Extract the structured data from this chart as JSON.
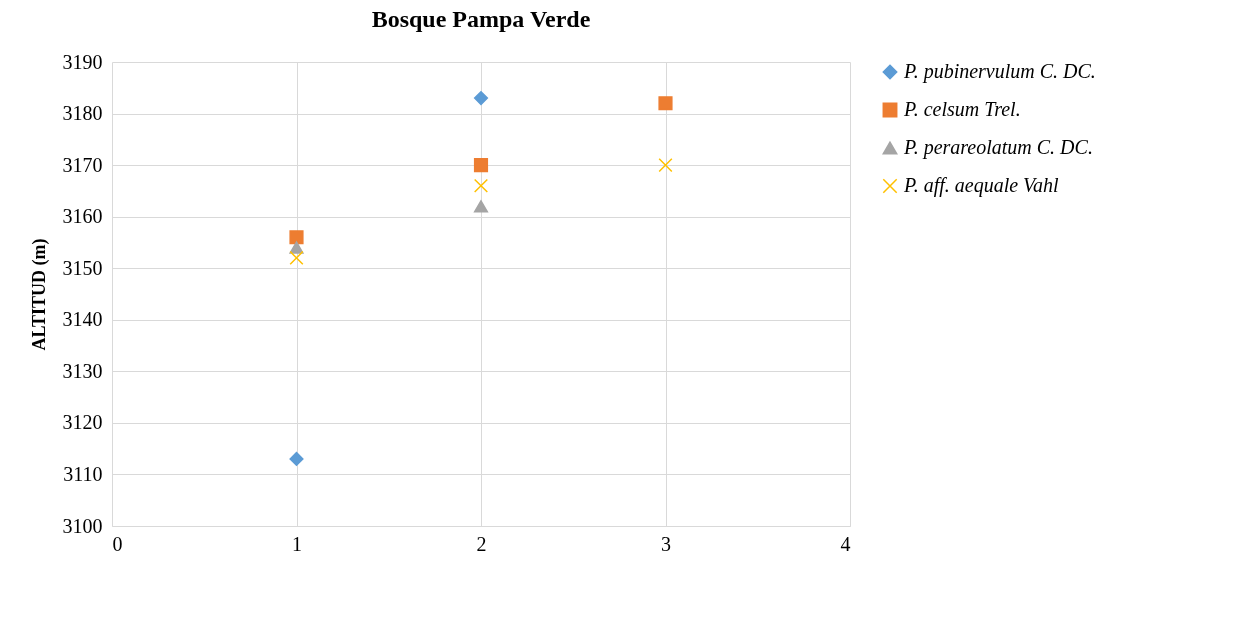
{
  "chart_data": {
    "type": "scatter",
    "title": "Bosque Pampa Verde",
    "ylabel": "ALTITUD (m)",
    "xlim": [
      0,
      4
    ],
    "xticks": [
      0,
      1,
      2,
      3,
      4
    ],
    "ylim": [
      3100,
      3190
    ],
    "yticks": [
      3100,
      3110,
      3120,
      3130,
      3140,
      3150,
      3160,
      3170,
      3180,
      3190
    ],
    "grid": true,
    "legend": "right",
    "series": [
      {
        "name": "P. pubinervulum C. DC.",
        "color": "#5b9bd5",
        "marker": "diamond",
        "x": [
          1,
          2
        ],
        "values": [
          3113,
          3183
        ]
      },
      {
        "name": "P. celsum Trel.",
        "color": "#ed7d31",
        "marker": "square",
        "x": [
          1,
          2,
          3
        ],
        "values": [
          3156,
          3170,
          3182
        ]
      },
      {
        "name": "P. perareolatum C. DC.",
        "color": "#a5a5a5",
        "marker": "triangle",
        "x": [
          1,
          2
        ],
        "values": [
          3154,
          3162
        ]
      },
      {
        "name": "P. aff. aequale Vahl",
        "color": "#ffc000",
        "marker": "cross",
        "x": [
          1,
          2,
          3
        ],
        "values": [
          3152,
          3166,
          3170
        ]
      }
    ]
  }
}
